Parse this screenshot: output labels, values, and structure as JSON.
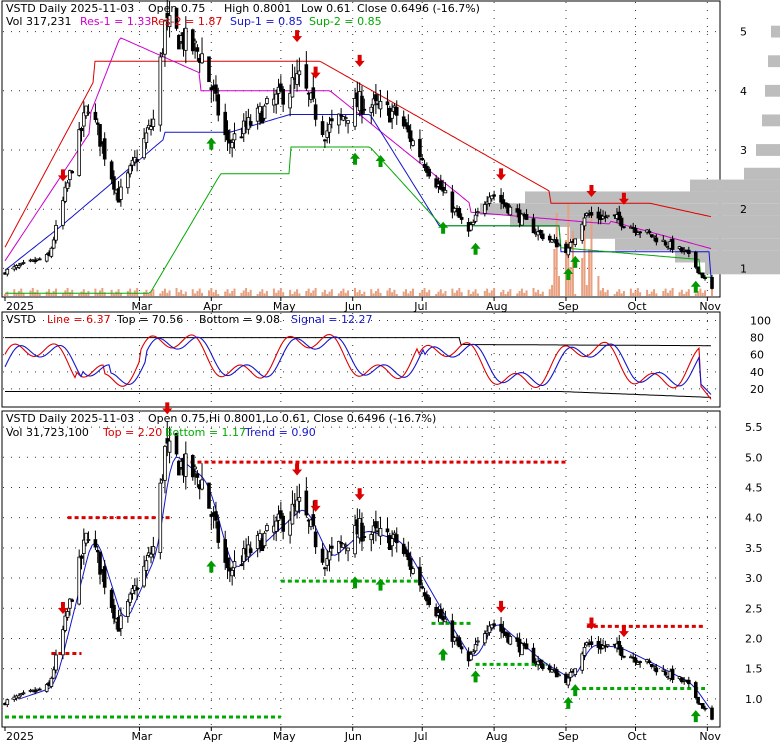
{
  "chart_data": [
    {
      "type": "candlestick",
      "panel": "top",
      "header": {
        "symbol": "VSTD",
        "period_text": "Daily 2025-11-03",
        "open_text": "Open 0.75",
        "high_text": "High 0.8001",
        "low_text": "Low 0.61",
        "close_text": "Close 0.6496 (-16.7%)",
        "vol_text": "Vol 317,231",
        "res1_text": "Res-1 = 1.33",
        "res2_text": "Res-2 = 1.87",
        "sup1_text": "Sup-1 = 0.85",
        "sup2_text": "Sup-2 = 0.85"
      },
      "y_ticks": [
        "1",
        "2",
        "3",
        "4",
        "5"
      ],
      "y_tick_values": [
        1,
        2,
        3,
        4,
        5
      ],
      "ylim": [
        0.5,
        5.5
      ],
      "x_ticks": [
        "2025",
        "Mar",
        "Apr",
        "May",
        "Jun",
        "Jul",
        "Aug",
        "Sep",
        "Oct",
        "Nov"
      ],
      "ohlc_keypoints": {
        "dates": [
          "2025-01-02",
          "2025-01-21",
          "2025-02-07",
          "2025-02-20",
          "2025-03-07",
          "2025-03-12",
          "2025-03-28",
          "2025-04-08",
          "2025-04-22",
          "2025-05-09",
          "2025-05-20",
          "2025-06-04",
          "2025-06-20",
          "2025-07-08",
          "2025-07-21",
          "2025-07-30",
          "2025-08-20",
          "2025-09-02",
          "2025-09-09",
          "2025-09-22",
          "2025-10-08",
          "2025-10-23",
          "2025-11-03"
        ],
        "close": [
          0.95,
          1.2,
          3.8,
          2.2,
          3.5,
          5.1,
          4.6,
          3.1,
          3.6,
          4.2,
          3.3,
          3.8,
          3.6,
          2.4,
          1.6,
          2.3,
          1.6,
          1.3,
          1.9,
          1.85,
          1.55,
          1.25,
          0.65
        ]
      },
      "resistance_curves": {
        "res1": {
          "label": "Res-1",
          "color": "#cc00cc",
          "end_value": 1.33
        },
        "res2": {
          "label": "Res-2",
          "color": "#dd0000",
          "end_value": 1.87
        },
        "sup1": {
          "label": "Sup-1",
          "color": "#1515cc",
          "end_value": 0.85
        },
        "sup2": {
          "label": "Sup-2",
          "color": "#00aa00",
          "end_value": 0.85
        }
      },
      "volume_profile": {
        "prices": [
          1.0,
          1.2,
          1.4,
          1.6,
          1.8,
          2.0,
          2.2,
          2.4,
          2.6,
          3.0,
          3.5,
          4.0,
          4.5,
          5.0
        ],
        "weights": [
          0.25,
          0.35,
          0.55,
          0.7,
          0.9,
          1.0,
          0.85,
          0.3,
          0.12,
          0.08,
          0.06,
          0.05,
          0.04,
          0.03
        ]
      },
      "buy_arrow_dates": [
        "2025-04-01",
        "2025-06-02",
        "2025-06-13",
        "2025-07-10",
        "2025-07-24",
        "2025-09-02",
        "2025-09-05",
        "2025-10-27"
      ],
      "sell_arrow_dates": [
        "2025-01-27",
        "2025-03-13",
        "2025-05-08",
        "2025-05-16",
        "2025-06-04",
        "2025-08-04",
        "2025-09-12",
        "2025-09-26"
      ],
      "colors": {
        "up": "#000000",
        "down": "#000000",
        "buy": "#009900",
        "sell": "#dd0000",
        "volume": "#e8a080"
      }
    },
    {
      "type": "line",
      "panel": "middle",
      "header": {
        "symbol": "VSTD",
        "line_text": "Line = 6.37",
        "top_text": "Top = 70.56",
        "bottom_text": "Bottom = 9.08",
        "signal_text": "Signal = 12.27"
      },
      "y_ticks": [
        "20",
        "40",
        "60",
        "80",
        "100"
      ],
      "y_tick_values": [
        20,
        40,
        60,
        80,
        100
      ],
      "ylim": [
        0,
        110
      ],
      "series": [
        {
          "name": "Line",
          "color": "#dd0000",
          "end_value": 6.37
        },
        {
          "name": "Signal",
          "color": "#1515cc",
          "end_value": 12.27
        },
        {
          "name": "Top",
          "color": "#000000",
          "end_value": 70.56
        },
        {
          "name": "Bottom",
          "color": "#000000",
          "end_value": 9.08
        }
      ]
    },
    {
      "type": "candlestick",
      "panel": "bottom",
      "header": {
        "symbol": "VSTD",
        "period_text": "Daily 2025-11-03",
        "ohlc_text": "Open 0.75,Hi 0.8001,Lo 0.61, Close 0.6496 (-16.7%)",
        "vol_text": "Vol 31,723,100",
        "top_text": "Top = 2.20",
        "bottom_text": "Bottom = 1.17",
        "trend_text": "Trend = 0.90"
      },
      "y_ticks": [
        "1.0",
        "1.5",
        "2.0",
        "2.5",
        "3.0",
        "3.5",
        "4.0",
        "4.5",
        "5.0",
        "5.5"
      ],
      "y_tick_values": [
        1.0,
        1.5,
        2.0,
        2.5,
        3.0,
        3.5,
        4.0,
        4.5,
        5.0,
        5.5
      ],
      "ylim": [
        0.55,
        5.75
      ],
      "x_ticks": [
        "2025",
        "Mar",
        "Apr",
        "May",
        "Jun",
        "Jul",
        "Aug",
        "Sep",
        "Oct",
        "Nov"
      ],
      "resistance_levels": [
        {
          "value": 4.92,
          "from": "2025-03-20",
          "to": "2025-09-01",
          "color": "#dd0000"
        },
        {
          "value": 4.0,
          "from": "2025-01-29",
          "to": "2025-03-14",
          "color": "#dd0000"
        },
        {
          "value": 2.2,
          "from": "2025-09-10",
          "to": "2025-10-31",
          "color": "#dd0000"
        },
        {
          "value": 1.75,
          "from": "2025-01-22",
          "to": "2025-02-04",
          "color": "#dd0000"
        }
      ],
      "support_levels": [
        {
          "value": 2.95,
          "from": "2025-05-01",
          "to": "2025-07-01",
          "color": "#00aa00"
        },
        {
          "value": 2.25,
          "from": "2025-07-05",
          "to": "2025-07-22",
          "color": "#00aa00"
        },
        {
          "value": 1.57,
          "from": "2025-07-24",
          "to": "2025-08-24",
          "color": "#00aa00"
        },
        {
          "value": 1.17,
          "from": "2025-09-08",
          "to": "2025-10-31",
          "color": "#00aa00"
        },
        {
          "value": 0.7,
          "from": "2025-01-02",
          "to": "2025-05-01",
          "color": "#00aa00"
        }
      ],
      "trend_color": "#1515cc"
    }
  ]
}
